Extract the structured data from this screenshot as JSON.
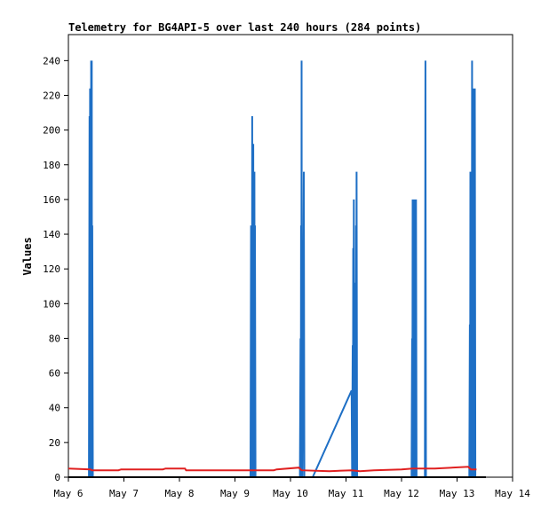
{
  "chart_data": {
    "type": "line",
    "title": "Telemetry for BG4API-5 over last 240 hours (284 points)",
    "xlabel": "",
    "ylabel": "Values",
    "ylim": [
      0,
      255
    ],
    "yticks": [
      0,
      20,
      40,
      60,
      80,
      100,
      120,
      140,
      160,
      180,
      200,
      220,
      240
    ],
    "xlim": [
      "May 6 00:00",
      "May 14 00:00"
    ],
    "xticks": [
      {
        "label": "May 6",
        "day": 6
      },
      {
        "label": "May 7",
        "day": 7
      },
      {
        "label": "May 8",
        "day": 8
      },
      {
        "label": "May 9",
        "day": 9
      },
      {
        "label": "May 10",
        "day": 10
      },
      {
        "label": "May 11",
        "day": 11
      },
      {
        "label": "May 12",
        "day": 12
      },
      {
        "label": "May 13",
        "day": 13
      },
      {
        "label": "May 14",
        "day": 14
      }
    ],
    "grid": false,
    "legend": "none",
    "series": [
      {
        "color": "#1e6fc5",
        "points": [
          [
            6.37,
            0
          ],
          [
            6.38,
            208
          ],
          [
            6.385,
            0
          ],
          [
            6.39,
            224
          ],
          [
            6.395,
            0
          ],
          [
            6.4,
            120
          ],
          [
            6.405,
            0
          ],
          [
            6.41,
            240
          ],
          [
            6.415,
            0
          ],
          [
            6.42,
            240
          ],
          [
            6.425,
            0
          ],
          [
            6.43,
            145
          ],
          [
            6.44,
            0
          ],
          [
            9.28,
            0
          ],
          [
            9.29,
            145
          ],
          [
            9.295,
            0
          ],
          [
            9.3,
            104
          ],
          [
            9.305,
            0
          ],
          [
            9.31,
            208
          ],
          [
            9.315,
            0
          ],
          [
            9.32,
            112
          ],
          [
            9.325,
            0
          ],
          [
            9.33,
            192
          ],
          [
            9.335,
            0
          ],
          [
            9.34,
            128
          ],
          [
            9.345,
            0
          ],
          [
            9.35,
            176
          ],
          [
            9.355,
            0
          ],
          [
            9.36,
            145
          ],
          [
            9.37,
            0
          ],
          [
            10.17,
            0
          ],
          [
            10.18,
            80
          ],
          [
            10.185,
            0
          ],
          [
            10.19,
            145
          ],
          [
            10.195,
            0
          ],
          [
            10.2,
            240
          ],
          [
            10.205,
            0
          ],
          [
            10.21,
            120
          ],
          [
            10.215,
            0
          ],
          [
            10.24,
            176
          ],
          [
            10.25,
            0
          ],
          [
            10.4,
            0
          ],
          [
            11.1,
            50
          ],
          [
            11.11,
            0
          ],
          [
            11.12,
            76
          ],
          [
            11.125,
            0
          ],
          [
            11.13,
            132
          ],
          [
            11.135,
            0
          ],
          [
            11.14,
            160
          ],
          [
            11.145,
            0
          ],
          [
            11.15,
            112
          ],
          [
            11.155,
            0
          ],
          [
            11.16,
            64
          ],
          [
            11.165,
            0
          ],
          [
            11.17,
            45
          ],
          [
            11.175,
            0
          ],
          [
            11.18,
            145
          ],
          [
            11.185,
            0
          ],
          [
            11.19,
            176
          ],
          [
            11.2,
            0
          ],
          [
            12.18,
            0
          ],
          [
            12.19,
            80
          ],
          [
            12.195,
            0
          ],
          [
            12.2,
            160
          ],
          [
            12.205,
            0
          ],
          [
            12.21,
            145
          ],
          [
            12.215,
            0
          ],
          [
            12.22,
            72
          ],
          [
            12.225,
            0
          ],
          [
            12.23,
            160
          ],
          [
            12.235,
            0
          ],
          [
            12.24,
            72
          ],
          [
            12.245,
            0
          ],
          [
            12.25,
            160
          ],
          [
            12.255,
            0
          ],
          [
            12.26,
            160
          ],
          [
            12.27,
            0
          ],
          [
            12.42,
            0
          ],
          [
            12.43,
            240
          ],
          [
            12.44,
            0
          ],
          [
            13.22,
            0
          ],
          [
            13.23,
            88
          ],
          [
            13.235,
            0
          ],
          [
            13.24,
            176
          ],
          [
            13.245,
            0
          ],
          [
            13.25,
            176
          ],
          [
            13.255,
            0
          ],
          [
            13.26,
            112
          ],
          [
            13.265,
            0
          ],
          [
            13.27,
            240
          ],
          [
            13.275,
            0
          ],
          [
            13.28,
            112
          ],
          [
            13.285,
            0
          ],
          [
            13.29,
            224
          ],
          [
            13.295,
            0
          ],
          [
            13.3,
            128
          ],
          [
            13.305,
            0
          ],
          [
            13.31,
            96
          ],
          [
            13.315,
            0
          ],
          [
            13.32,
            224
          ],
          [
            13.33,
            0
          ]
        ]
      },
      {
        "color": "#e02020",
        "points": [
          [
            6.0,
            5
          ],
          [
            6.4,
            4.5
          ],
          [
            6.42,
            4
          ],
          [
            6.9,
            4
          ],
          [
            6.95,
            4.5
          ],
          [
            7.7,
            4.5
          ],
          [
            7.75,
            5
          ],
          [
            8.1,
            5
          ],
          [
            8.12,
            4
          ],
          [
            9.3,
            4
          ],
          [
            9.7,
            4
          ],
          [
            9.75,
            4.5
          ],
          [
            10.15,
            5.5
          ],
          [
            10.2,
            4
          ],
          [
            10.7,
            3.5
          ],
          [
            11.1,
            4
          ],
          [
            11.25,
            3.5
          ],
          [
            11.5,
            4
          ],
          [
            12.0,
            4.5
          ],
          [
            12.2,
            5
          ],
          [
            12.45,
            5
          ],
          [
            12.6,
            5
          ],
          [
            13.2,
            6
          ],
          [
            13.25,
            4.5
          ],
          [
            13.35,
            4.5
          ]
        ]
      }
    ]
  }
}
